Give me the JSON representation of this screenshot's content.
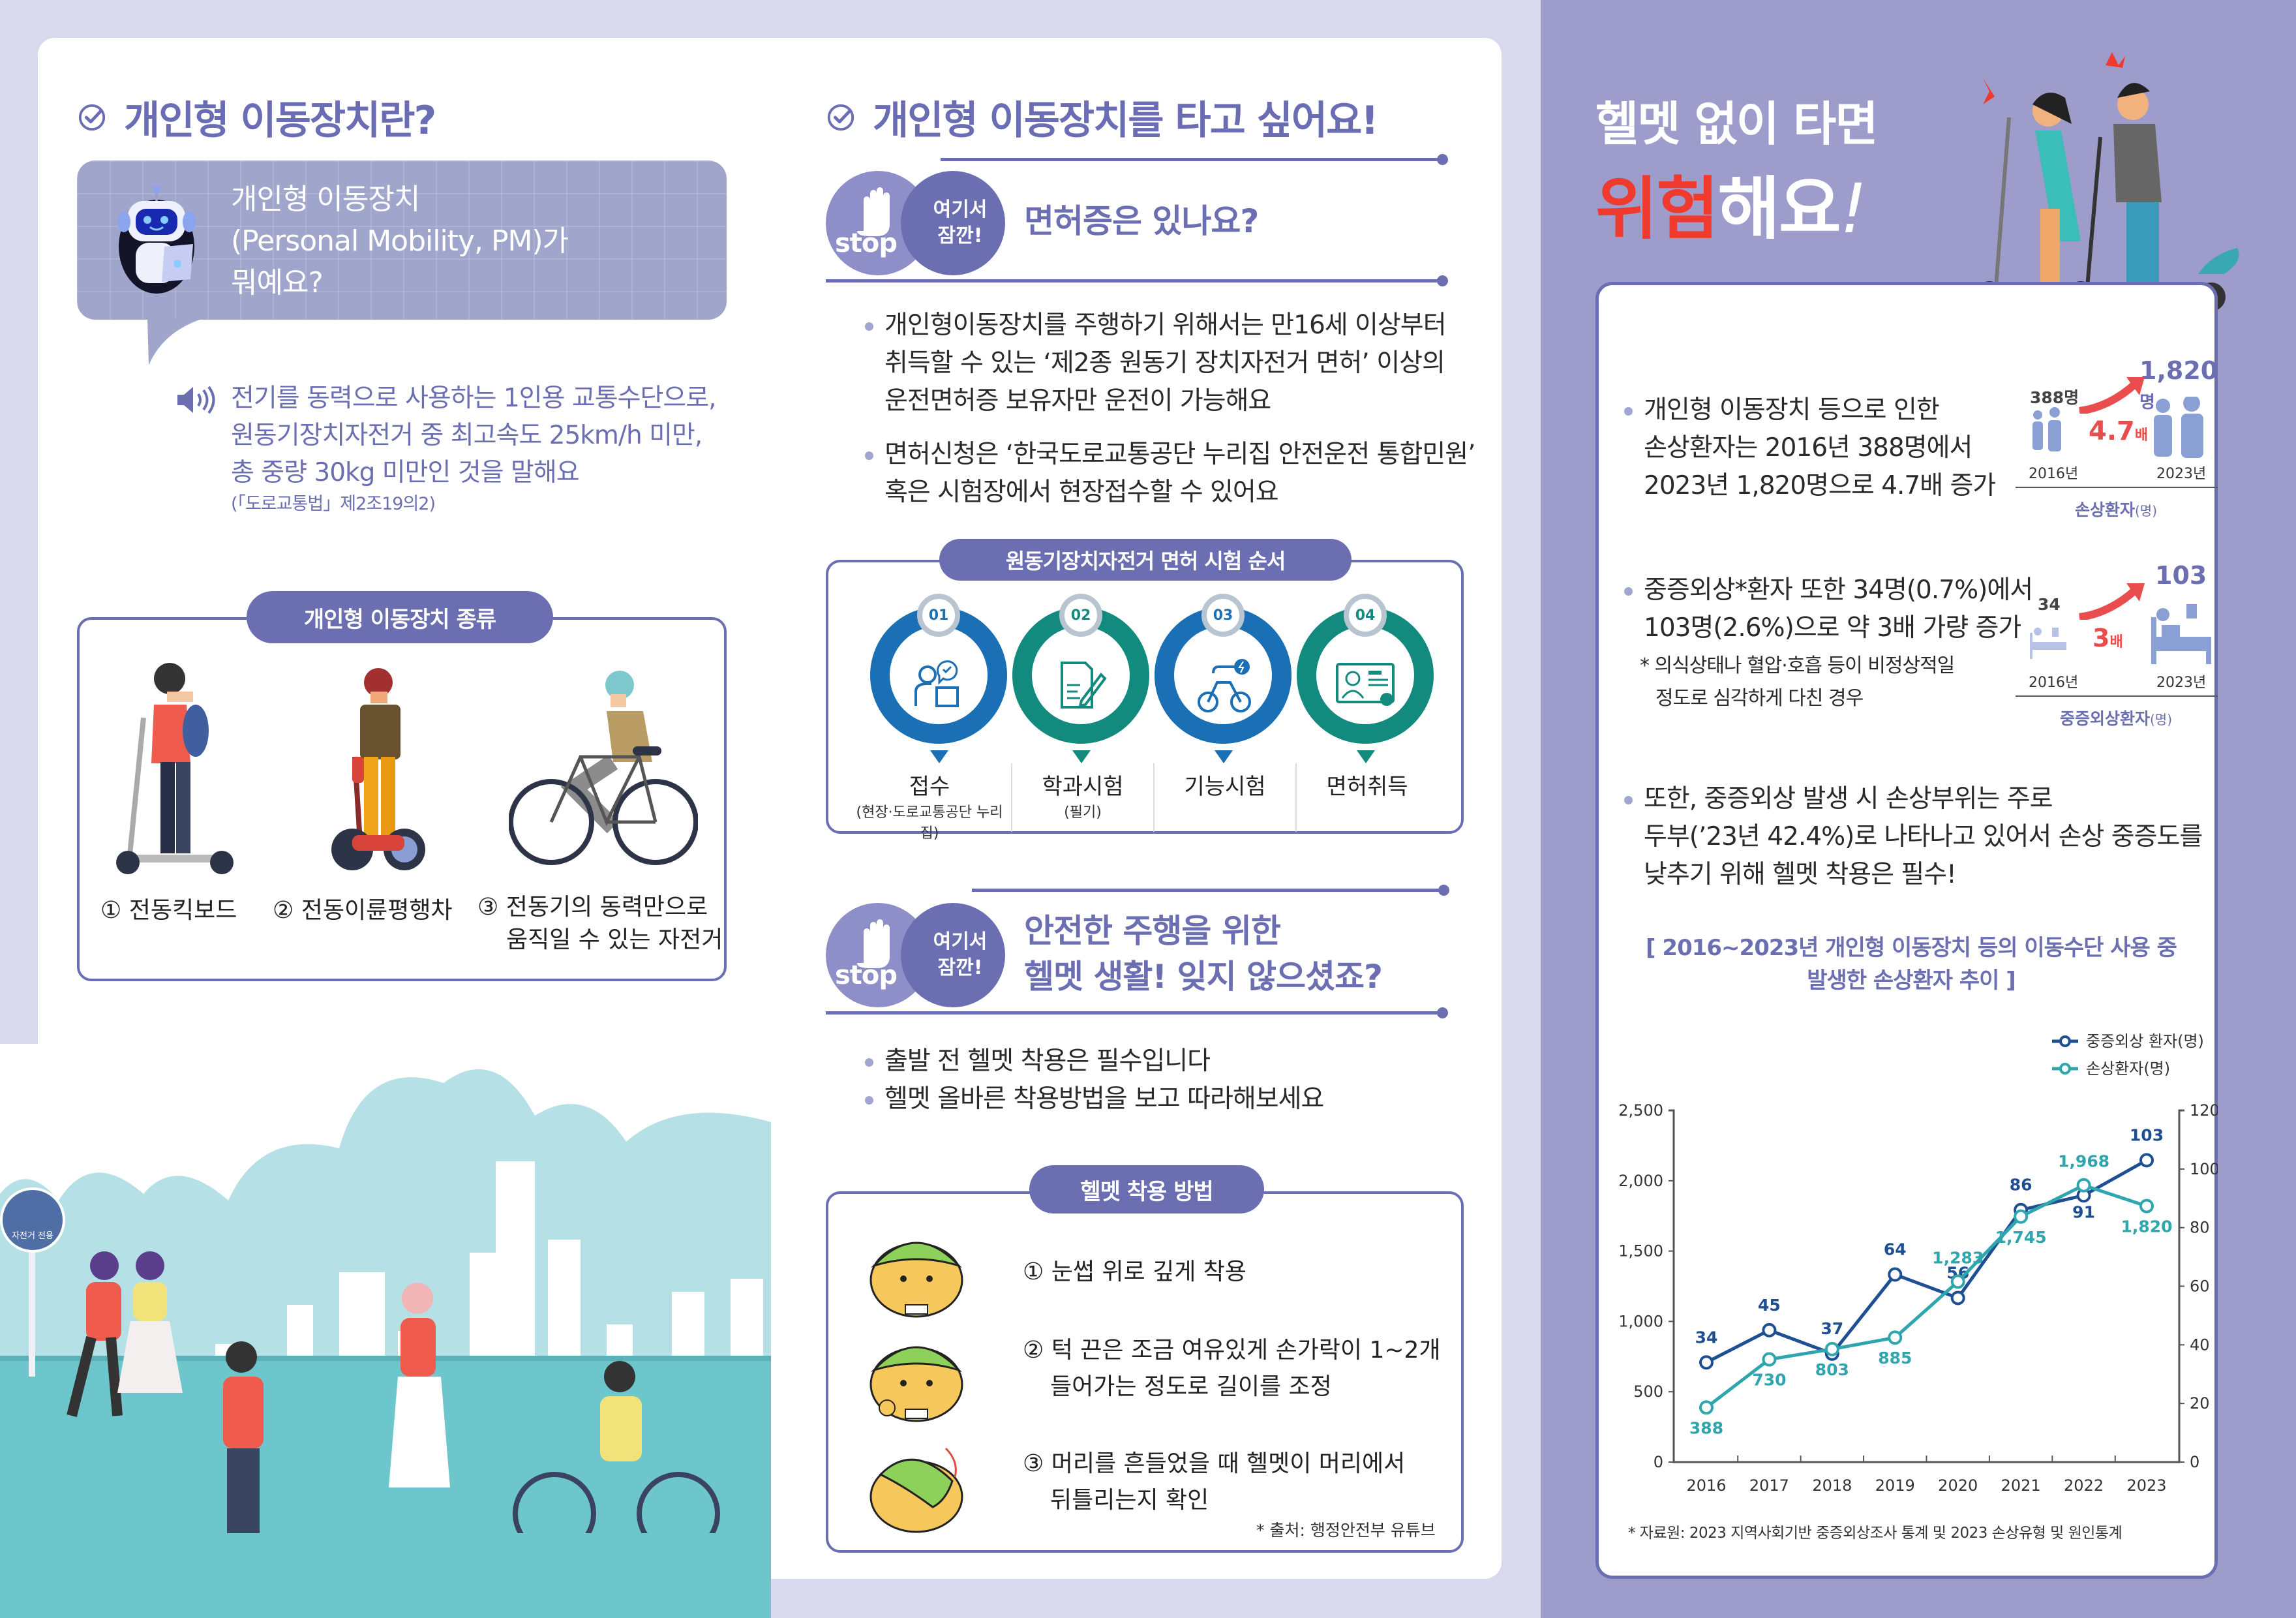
{
  "left": {
    "title": "개인형 이동장치란?",
    "bubble": {
      "line1": "개인형 이동장치",
      "line2": "(Personal Mobility, PM)가",
      "line3": "뭐예요?"
    },
    "definition": {
      "line1": "전기를 동력으로 사용하는 1인용 교통수단으로,",
      "line2": "원동기장치자전거 중 최고속도 25km/h 미만,",
      "line3": "총 중량 30kg 미만인 것을 말해요",
      "source": "(「도로교통법」제2조19의2)"
    },
    "types": {
      "title": "개인형 이동장치 종류",
      "items": [
        {
          "label": "① 전동킥보드",
          "label2": ""
        },
        {
          "label": "② 전동이륜평행차",
          "label2": ""
        },
        {
          "label": "③ 전동기의 동력만으로",
          "label2": "움직일 수 있는 자전거"
        }
      ]
    },
    "illustration": {
      "sign_label": "자전거 전용"
    }
  },
  "middle": {
    "title": "개인형 이동장치를 타고 싶어요!",
    "badge": {
      "stop": "stop",
      "line1": "여기서",
      "line2": "잠깐!"
    },
    "license": {
      "question": "면허증은 있나요?",
      "bullets": [
        [
          "개인형이동장치를 주행하기 위해서는 만16세 이상부터",
          "취득할 수 있는 ‘제2종 원동기 장치자전거 면허’ 이상의",
          "운전면허증 보유자만 운전이 가능해요"
        ],
        [
          "면허신청은 ‘한국도로교통공단 누리집 안전운전 통합민원’",
          "혹은 시험장에서 현장접수할 수 있어요"
        ]
      ]
    },
    "exam": {
      "title": "원동기장치자전거 면허 시험 순서",
      "steps": [
        {
          "num": "01",
          "label": "접수",
          "sub": "(현장·도로교통공단 누리집)"
        },
        {
          "num": "02",
          "label": "학과시험",
          "sub": "(필기)"
        },
        {
          "num": "03",
          "label": "기능시험",
          "sub": ""
        },
        {
          "num": "04",
          "label": "면허취득",
          "sub": ""
        }
      ]
    },
    "helmet_section": {
      "question_line1": "안전한 주행을 위한",
      "question_line2": "헬멧 생활! 잊지 않으셨죠?",
      "bullets": [
        "출발 전 헬멧 착용은 필수입니다",
        "헬멧 올바른 착용방법을 보고 따라해보세요"
      ]
    },
    "helmet_howto": {
      "title": "헬멧 착용 방법",
      "steps": [
        {
          "line1": "① 눈썹 위로 깊게 착용",
          "line2": ""
        },
        {
          "line1": "② 턱 끈은 조금 여유있게 손가락이 1~2개",
          "line2": "들어가는 정도로 길이를 조정"
        },
        {
          "line1": "③ 머리를 흔들었을 때 헬멧이 머리에서",
          "line2": "뒤틀리는지 확인"
        }
      ],
      "source": "* 출처: 행정안전부 유튜브"
    }
  },
  "right": {
    "headline1": "헬멧 없이 타면",
    "headline2_red": "위험",
    "headline2_rest": "해요",
    "headline2_mark": "!",
    "colors": {
      "accent_red": "#f03a2e",
      "panel": "#9d9ccb",
      "navy": "#1f4f93",
      "teal": "#2fa6ad"
    },
    "stat1": {
      "lines": [
        "개인형 이동장치 등으로 인한",
        "손상환자는 2016년 388명에서",
        "2023년 1,820명으로 4.7배 증가"
      ],
      "from_value": "388명",
      "to_value": "1,820",
      "to_unit": "명",
      "ratio": "4.7",
      "ratio_unit": "배",
      "from_year": "2016년",
      "to_year": "2023년",
      "caption": "손상환자",
      "caption_unit": "(명)"
    },
    "stat2": {
      "lines": [
        "중증외상*환자 또한 34명(0.7%)에서",
        "103명(2.6%)으로 약 3배 가량 증가"
      ],
      "note": [
        "* 의식상태나 혈압·호흡 등이 비정상적일",
        "정도로 심각하게 다친 경우"
      ],
      "from_value": "34",
      "to_value": "103",
      "ratio": "3",
      "ratio_unit": "배",
      "from_year": "2016년",
      "to_year": "2023년",
      "caption": "중증외상환자",
      "caption_unit": "(명)"
    },
    "stat3": {
      "lines": [
        "또한, 중증외상 발생 시 손상부위는 주로",
        "두부(’23년 42.4%)로 나타나고 있어서 손상 중증도를",
        "낮추기 위해 헬멧 착용은 필수!"
      ]
    },
    "chart_title_line1": "[ 2016~2023년 개인형 이동장치 등의 이동수단 사용 중",
    "chart_title_line2": "발생한 손상환자 추이 ]",
    "chart_source": "* 자료원: 2023 지역사회기반 중증외상조사 통계 및 2023 손상유형 및 원인통계"
  },
  "chart_data": {
    "type": "line",
    "title": "2016~2023년 개인형 이동장치 등의 이동수단 사용 중 발생한 손상환자 추이",
    "categories": [
      "2016",
      "2017",
      "2018",
      "2019",
      "2020",
      "2021",
      "2022",
      "2023"
    ],
    "series": [
      {
        "name": "중증외상 환자(명)",
        "axis": "right",
        "color": "#1f4f93",
        "values": [
          34,
          45,
          37,
          64,
          56,
          86,
          91,
          103
        ]
      },
      {
        "name": "손상환자(명)",
        "axis": "left",
        "color": "#2fa6ad",
        "values": [
          388,
          730,
          803,
          885,
          1283,
          1745,
          1968,
          1820
        ]
      }
    ],
    "left_axis": {
      "range": [
        0,
        2500
      ],
      "ticks": [
        "0",
        "500",
        "1,000",
        "1,500",
        "2,000",
        "2,500"
      ]
    },
    "right_axis": {
      "range": [
        0,
        120
      ],
      "ticks": [
        "0",
        "20",
        "40",
        "60",
        "80",
        "100",
        "120"
      ]
    },
    "xlabel": "",
    "ylabel": "",
    "grid": false,
    "legend_position": "top-right",
    "source": "* 자료원: 2023 지역사회기반 중증외상조사 통계 및 2023 손상유형 및 원인통계"
  }
}
